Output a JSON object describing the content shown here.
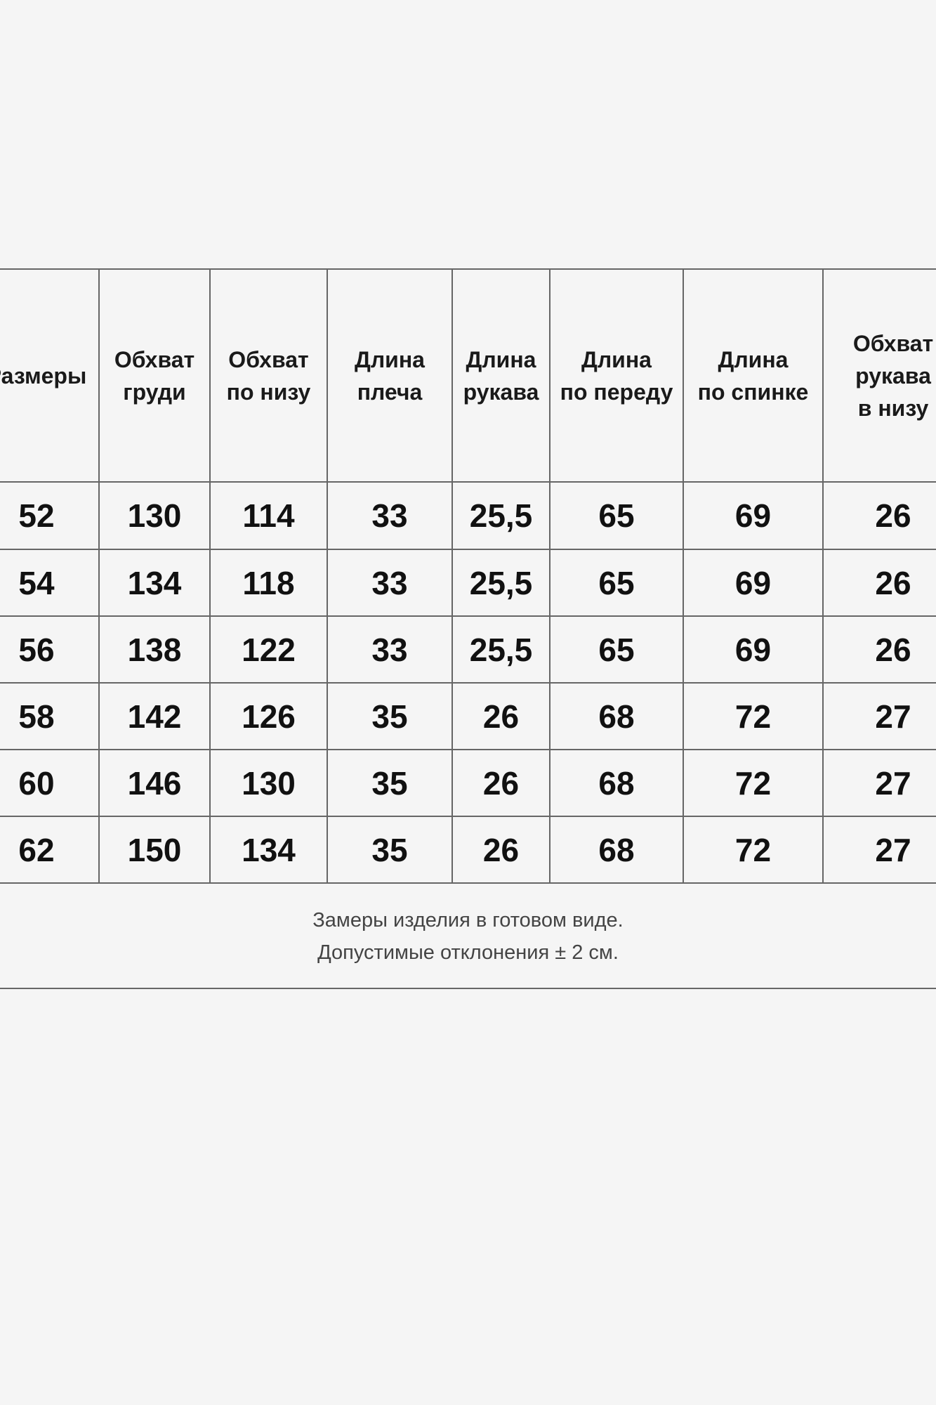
{
  "table": {
    "headers": [
      "Размеры",
      "Обхват\nгруди",
      "Обхват\nпо низу",
      "Длина\nплеча",
      "Длина\nрукава",
      "Длина\nпо переду",
      "Длина\nпо спинке",
      "Обхват\nрукава\nв низу"
    ],
    "rows": [
      [
        "52",
        "130",
        "114",
        "33",
        "25,5",
        "65",
        "69",
        "26"
      ],
      [
        "54",
        "134",
        "118",
        "33",
        "25,5",
        "65",
        "69",
        "26"
      ],
      [
        "56",
        "138",
        "122",
        "33",
        "25,5",
        "65",
        "69",
        "26"
      ],
      [
        "58",
        "142",
        "126",
        "35",
        "26",
        "68",
        "72",
        "27"
      ],
      [
        "60",
        "146",
        "130",
        "35",
        "26",
        "68",
        "72",
        "27"
      ],
      [
        "62",
        "150",
        "134",
        "35",
        "26",
        "68",
        "72",
        "27"
      ]
    ]
  },
  "note": {
    "line1": "Замеры изделия в готовом виде.",
    "line2": "Допустимые отклонения ± 2 см."
  }
}
